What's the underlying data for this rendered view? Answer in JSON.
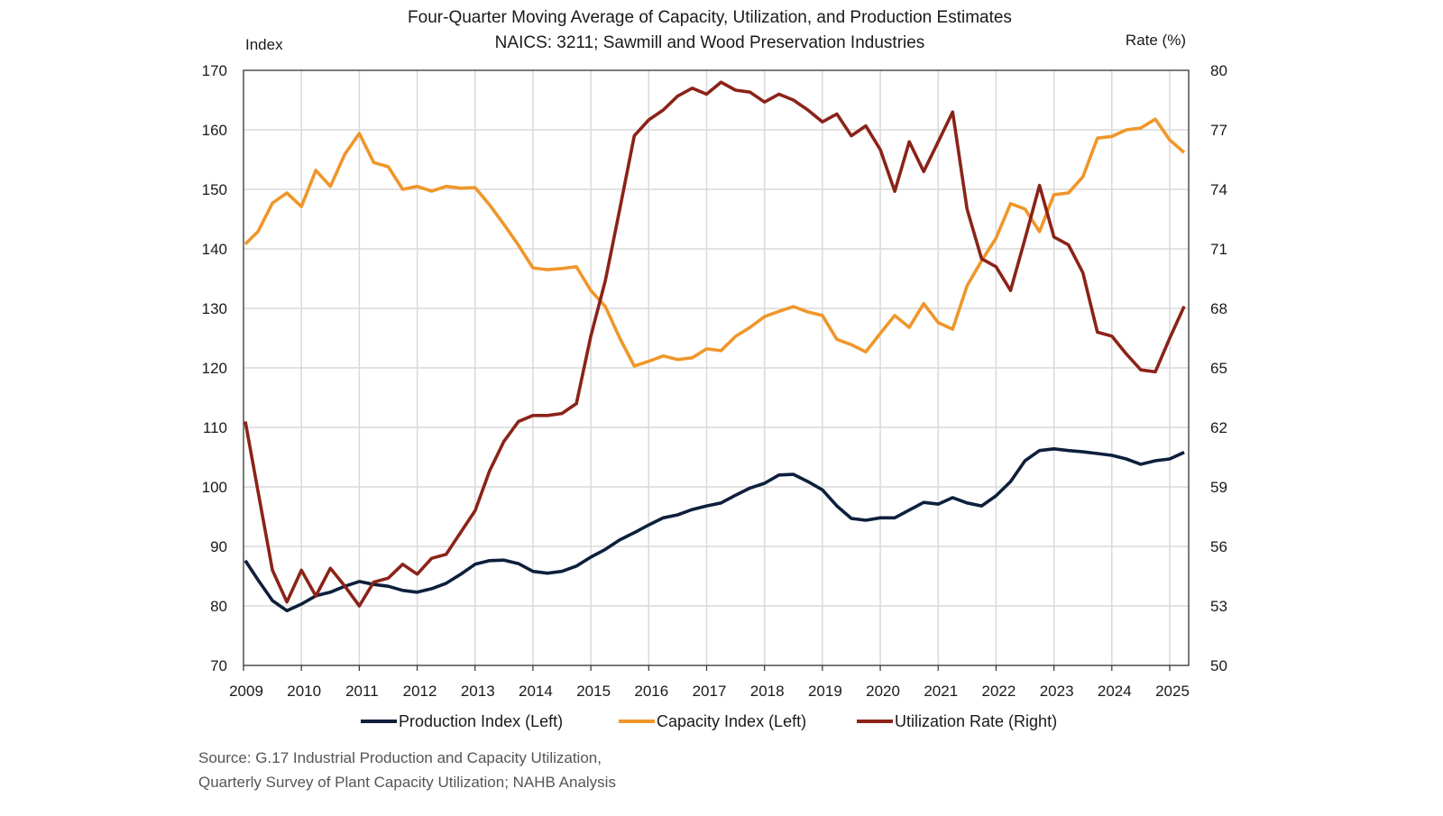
{
  "chart_data": {
    "type": "line",
    "title": "Four-Quarter Moving Average of Capacity, Utilization, and Production Estimates",
    "subtitle": "NAICS: 3211; Sawmill and Wood Preservation Industries",
    "ylabel_left": "Index",
    "ylabel_right": "Rate (%)",
    "ylim_left": [
      70,
      170
    ],
    "yticks_left": [
      70,
      80,
      90,
      100,
      110,
      120,
      130,
      140,
      150,
      160,
      170
    ],
    "ylim_right": [
      50,
      80
    ],
    "yticks_right": [
      50,
      53,
      56,
      59,
      62,
      65,
      68,
      71,
      74,
      77,
      80
    ],
    "xticks": [
      "2009",
      "2010",
      "2011",
      "2012",
      "2013",
      "2014",
      "2015",
      "2016",
      "2017",
      "2018",
      "2019",
      "2020",
      "2021",
      "2022",
      "2023",
      "2024",
      "2025"
    ],
    "x_start": "2009 Q1",
    "x_frequency": "quarterly",
    "grid": true,
    "legend_position": "bottom",
    "series": [
      {
        "name": "Production Index (Left)",
        "axis": "left",
        "color": "#0d1f3c",
        "values": [
          87.6,
          84.4,
          80.9,
          79.2,
          80.3,
          81.7,
          82.3,
          83.3,
          84.1,
          83.6,
          83.3,
          82.6,
          82.3,
          82.9,
          83.8,
          85.3,
          87.0,
          87.6,
          87.7,
          87.1,
          85.8,
          85.5,
          85.8,
          86.7,
          88.2,
          89.5,
          91.1,
          92.3,
          93.6,
          94.8,
          95.3,
          96.2,
          96.8,
          97.3,
          98.6,
          99.8,
          100.6,
          102.0,
          102.1,
          100.9,
          99.5,
          96.8,
          94.7,
          94.4,
          94.8,
          94.8,
          96.1,
          97.4,
          97.1,
          98.2,
          97.3,
          96.8,
          98.5,
          100.9,
          104.4,
          106.1,
          106.4,
          106.1,
          105.9,
          105.6,
          105.3,
          104.7,
          103.8,
          104.4,
          104.7,
          105.8
        ]
      },
      {
        "name": "Capacity Index (Left)",
        "axis": "left",
        "color": "#f0962a",
        "values": [
          140.8,
          142.9,
          147.7,
          149.4,
          147.1,
          153.2,
          150.5,
          155.9,
          159.4,
          154.5,
          153.8,
          150.0,
          150.5,
          149.7,
          150.5,
          150.2,
          150.3,
          147.4,
          144.1,
          140.6,
          136.8,
          136.5,
          136.7,
          137.0,
          133.0,
          130.3,
          125.0,
          120.3,
          121.1,
          122.0,
          121.4,
          121.7,
          123.2,
          122.9,
          125.3,
          126.8,
          128.6,
          129.5,
          130.3,
          129.4,
          128.8,
          124.8,
          123.9,
          122.7,
          125.8,
          128.8,
          126.8,
          130.8,
          127.6,
          126.5,
          133.8,
          138.0,
          141.8,
          147.6,
          146.7,
          142.9,
          149.1,
          149.4,
          152.1,
          158.6,
          158.9,
          160.0,
          160.3,
          161.8,
          158.3,
          156.2
        ]
      },
      {
        "name": "Utilization Rate (Right)",
        "axis": "right",
        "color": "#8b2318",
        "values": [
          62.3,
          58.8,
          54.8,
          53.2,
          54.8,
          53.5,
          54.9,
          54.0,
          53.0,
          54.2,
          54.4,
          55.1,
          54.6,
          55.4,
          55.6,
          56.7,
          57.8,
          59.8,
          61.3,
          62.3,
          62.6,
          62.6,
          62.7,
          63.2,
          66.6,
          69.4,
          73.0,
          76.7,
          77.5,
          78.0,
          78.7,
          79.1,
          78.8,
          79.4,
          79.0,
          78.9,
          78.4,
          78.8,
          78.5,
          78.0,
          77.4,
          77.8,
          76.7,
          77.2,
          76.0,
          73.9,
          76.4,
          74.9,
          76.4,
          77.9,
          73.0,
          70.5,
          70.1,
          68.9,
          71.5,
          74.2,
          71.6,
          71.2,
          69.8,
          66.8,
          66.6,
          65.7,
          64.9,
          64.8,
          66.5,
          68.1
        ]
      }
    ]
  },
  "source": {
    "line1": "Source: G.17 Industrial Production and Capacity Utilization,",
    "line2": "Quarterly Survey of Plant Capacity Utilization; NAHB Analysis"
  }
}
